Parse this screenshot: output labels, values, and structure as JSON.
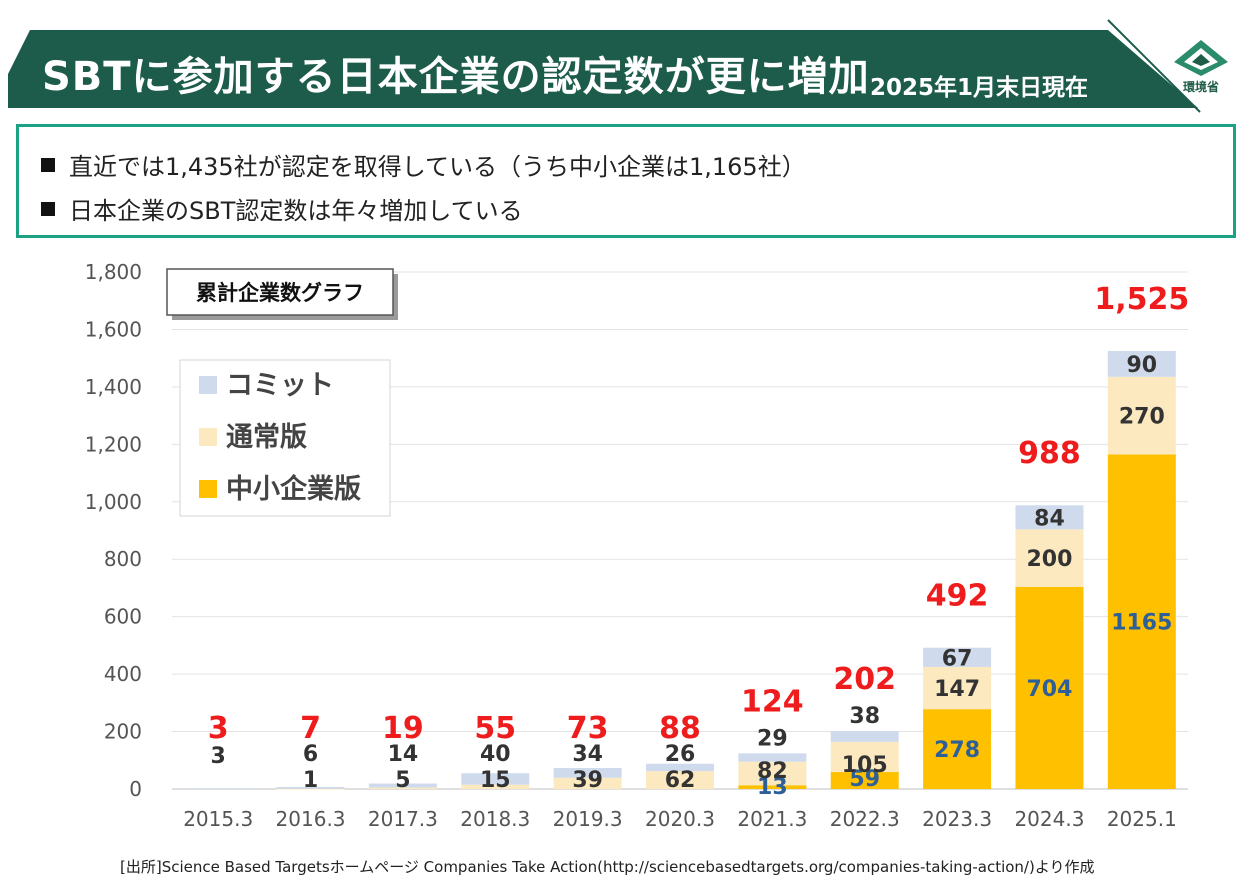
{
  "header": {
    "title": "SBTに参加する日本企業の認定数が更に増加",
    "as_of": "2025年1月末日現在",
    "logo_text": "環境省"
  },
  "summary": {
    "bullets": [
      "直近では1,435社が認定を取得している（うち中小企業は1,165社）",
      "日本企業のSBT認定数は年々増加している"
    ]
  },
  "colors": {
    "banner": "#1d5c4b",
    "summary_border": "#1aa283",
    "sme": "#ffc000",
    "standard": "#fce9c0",
    "commit": "#cfdbec",
    "total_label": "#ee1c1c",
    "value_dark": "#333333",
    "value_blue": "#2e5f96"
  },
  "chart_data": {
    "type": "bar",
    "stacked": true,
    "title": "累計企業数グラフ",
    "categories": [
      "2015.3",
      "2016.3",
      "2017.3",
      "2018.3",
      "2019.3",
      "2020.3",
      "2021.3",
      "2022.3",
      "2023.3",
      "2024.3",
      "2025.1"
    ],
    "series": [
      {
        "name": "中小企業版",
        "values": [
          0,
          0,
          0,
          0,
          0,
          0,
          13,
          59,
          278,
          704,
          1165
        ]
      },
      {
        "name": "通常版",
        "values": [
          0,
          1,
          5,
          15,
          39,
          62,
          82,
          105,
          147,
          200,
          270
        ]
      },
      {
        "name": "コミット",
        "values": [
          3,
          6,
          14,
          40,
          34,
          26,
          29,
          38,
          67,
          84,
          90
        ]
      }
    ],
    "totals": [
      "3",
      "7",
      "19",
      "55",
      "73",
      "88",
      "124",
      "202",
      "492",
      "988",
      "1,525"
    ],
    "ylim": [
      0,
      1800
    ],
    "yticks": [
      0,
      200,
      400,
      600,
      800,
      1000,
      1200,
      1400,
      1600,
      1800
    ],
    "ytick_labels": [
      "0",
      "200",
      "400",
      "600",
      "800",
      "1,000",
      "1,200",
      "1,400",
      "1,600",
      "1,800"
    ],
    "grid": true,
    "legend_position": "top-left",
    "legend": [
      "コミット",
      "通常版",
      "中小企業版"
    ]
  },
  "source": "[出所]Science Based Targetsホームページ  Companies Take Action(http://sciencebasedtargets.org/companies-taking-action/)より作成"
}
